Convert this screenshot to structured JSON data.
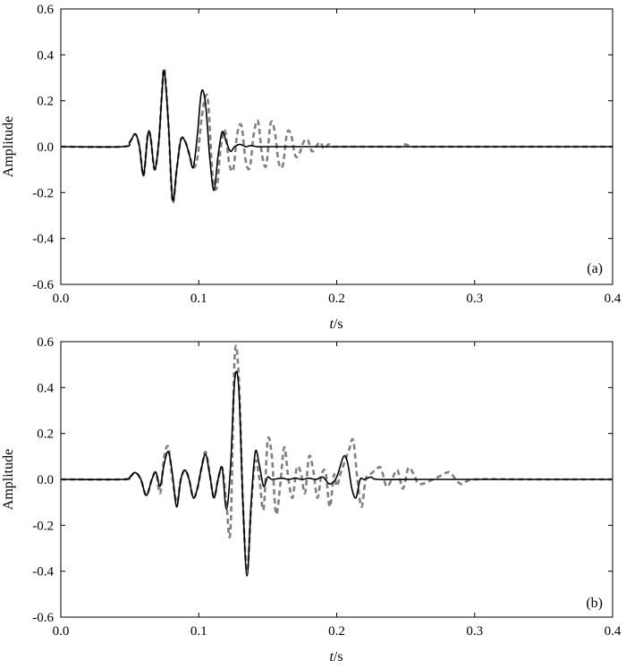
{
  "chart_data": [
    {
      "type": "line",
      "panel_label": "(a)",
      "xlabel_italic": "t",
      "xlabel_rest": "/s",
      "ylabel": "Amplitude",
      "xlim": [
        0.0,
        0.4
      ],
      "ylim": [
        -0.6,
        0.6
      ],
      "xticks": [
        "0.0",
        "0.1",
        "0.2",
        "0.3",
        "0.4"
      ],
      "yticks": [
        "0.6",
        "0.4",
        "0.2",
        "0.0",
        "-0.2",
        "-0.4",
        "-0.6"
      ],
      "grid": false,
      "series": [
        {
          "style": "solid",
          "color": "#000000",
          "x": [
            0.0,
            0.045,
            0.05,
            0.054,
            0.057,
            0.06,
            0.063,
            0.065,
            0.068,
            0.071,
            0.073,
            0.075,
            0.078,
            0.081,
            0.084,
            0.087,
            0.09,
            0.093,
            0.096,
            0.099,
            0.102,
            0.105,
            0.108,
            0.111,
            0.114,
            0.117,
            0.12,
            0.123,
            0.126,
            0.13,
            0.134,
            0.138,
            0.142,
            0.15,
            0.2,
            0.4
          ],
          "y": [
            0.0,
            0.0,
            0.02,
            0.055,
            0.0,
            -0.125,
            0.05,
            0.045,
            -0.1,
            0.02,
            0.2,
            0.33,
            0.1,
            -0.23,
            -0.1,
            0.03,
            0.025,
            -0.03,
            -0.09,
            0.05,
            0.24,
            0.18,
            -0.05,
            -0.19,
            -0.04,
            0.065,
            0.02,
            -0.02,
            0.0,
            0.01,
            0.0,
            0.005,
            0.0,
            0.0,
            0.0,
            0.0
          ]
        },
        {
          "style": "dashed",
          "color": "#808080",
          "x": [
            0.0,
            0.045,
            0.05,
            0.054,
            0.057,
            0.06,
            0.063,
            0.065,
            0.068,
            0.071,
            0.073,
            0.075,
            0.078,
            0.081,
            0.084,
            0.087,
            0.09,
            0.093,
            0.096,
            0.099,
            0.102,
            0.105,
            0.107,
            0.11,
            0.113,
            0.116,
            0.119,
            0.122,
            0.125,
            0.128,
            0.131,
            0.134,
            0.137,
            0.14,
            0.143,
            0.146,
            0.149,
            0.152,
            0.155,
            0.158,
            0.161,
            0.164,
            0.167,
            0.17,
            0.173,
            0.176,
            0.179,
            0.182,
            0.185,
            0.188,
            0.191,
            0.194,
            0.197,
            0.2,
            0.22,
            0.24,
            0.246,
            0.25,
            0.254,
            0.26,
            0.3,
            0.32,
            0.34,
            0.36,
            0.4
          ],
          "y": [
            0.0,
            0.0,
            0.02,
            0.055,
            0.0,
            -0.125,
            0.05,
            0.045,
            -0.1,
            0.02,
            0.21,
            0.34,
            0.1,
            -0.24,
            -0.1,
            0.03,
            0.025,
            -0.03,
            -0.09,
            -0.05,
            0.12,
            0.22,
            0.18,
            -0.12,
            -0.18,
            0.0,
            0.07,
            -0.07,
            -0.1,
            0.06,
            0.09,
            -0.06,
            -0.09,
            0.06,
            0.11,
            -0.04,
            -0.08,
            0.1,
            0.07,
            -0.07,
            -0.08,
            0.06,
            0.05,
            -0.04,
            -0.03,
            0.02,
            0.03,
            -0.02,
            0.0,
            0.02,
            -0.01,
            0.01,
            0.0,
            0.0,
            0.0,
            0.0,
            0.0,
            0.01,
            0.0,
            0.0,
            0.0,
            0.0,
            0.0,
            0.0,
            0.0
          ]
        }
      ]
    },
    {
      "type": "line",
      "panel_label": "(b)",
      "xlabel_italic": "t",
      "xlabel_rest": "/s",
      "ylabel": "Amplitude",
      "xlim": [
        0.0,
        0.4
      ],
      "ylim": [
        -0.6,
        0.6
      ],
      "xticks": [
        "0.0",
        "0.1",
        "0.2",
        "0.3",
        "0.4"
      ],
      "yticks": [
        "0.6",
        "0.4",
        "0.2",
        "0.0",
        "-0.2",
        "-0.4",
        "-0.6"
      ],
      "grid": false,
      "series": [
        {
          "style": "solid",
          "color": "#000000",
          "x": [
            0.0,
            0.045,
            0.05,
            0.054,
            0.058,
            0.062,
            0.066,
            0.069,
            0.072,
            0.075,
            0.078,
            0.081,
            0.084,
            0.087,
            0.09,
            0.093,
            0.096,
            0.099,
            0.102,
            0.105,
            0.108,
            0.111,
            0.114,
            0.117,
            0.12,
            0.123,
            0.126,
            0.129,
            0.132,
            0.135,
            0.138,
            0.141,
            0.144,
            0.147,
            0.15,
            0.153,
            0.16,
            0.165,
            0.17,
            0.175,
            0.18,
            0.185,
            0.19,
            0.195,
            0.2,
            0.205,
            0.208,
            0.211,
            0.214,
            0.217,
            0.22,
            0.225,
            0.23,
            0.26,
            0.3,
            0.33,
            0.4
          ],
          "y": [
            0.0,
            0.0,
            0.01,
            0.03,
            0.0,
            -0.07,
            0.0,
            0.03,
            -0.03,
            0.07,
            0.12,
            0.02,
            -0.12,
            0.0,
            0.04,
            0.0,
            -0.08,
            -0.04,
            0.05,
            0.11,
            0.02,
            -0.08,
            0.0,
            0.05,
            -0.13,
            0.05,
            0.43,
            0.4,
            -0.1,
            -0.42,
            -0.1,
            0.12,
            0.06,
            -0.03,
            0.01,
            0.0,
            0.005,
            0.0,
            0.005,
            0.0,
            0.005,
            0.0,
            0.01,
            -0.02,
            0.01,
            0.1,
            0.07,
            -0.04,
            -0.08,
            0.0,
            0.0,
            0.01,
            0.0,
            0.0,
            0.0,
            0.0,
            0.0
          ]
        },
        {
          "style": "dashed",
          "color": "#808080",
          "x": [
            0.0,
            0.045,
            0.05,
            0.054,
            0.058,
            0.062,
            0.066,
            0.069,
            0.072,
            0.075,
            0.078,
            0.081,
            0.084,
            0.087,
            0.09,
            0.093,
            0.096,
            0.099,
            0.102,
            0.105,
            0.108,
            0.111,
            0.114,
            0.117,
            0.12,
            0.123,
            0.126,
            0.129,
            0.132,
            0.135,
            0.138,
            0.141,
            0.144,
            0.147,
            0.15,
            0.153,
            0.156,
            0.159,
            0.162,
            0.165,
            0.168,
            0.171,
            0.174,
            0.177,
            0.18,
            0.183,
            0.186,
            0.189,
            0.192,
            0.195,
            0.198,
            0.2,
            0.203,
            0.206,
            0.209,
            0.212,
            0.215,
            0.218,
            0.221,
            0.224,
            0.228,
            0.232,
            0.236,
            0.24,
            0.244,
            0.248,
            0.252,
            0.256,
            0.26,
            0.27,
            0.28,
            0.283,
            0.29,
            0.3,
            0.34,
            0.38,
            0.4
          ],
          "y": [
            0.0,
            0.0,
            0.01,
            0.03,
            0.0,
            -0.07,
            0.0,
            0.03,
            -0.06,
            0.1,
            0.14,
            0.0,
            -0.1,
            0.0,
            0.04,
            0.0,
            -0.08,
            -0.04,
            0.05,
            0.12,
            0.02,
            -0.08,
            0.0,
            0.05,
            -0.1,
            -0.22,
            0.53,
            0.45,
            -0.1,
            -0.4,
            -0.12,
            0.08,
            0.0,
            -0.13,
            0.17,
            0.1,
            -0.15,
            -0.03,
            0.14,
            0.0,
            -0.08,
            0.05,
            0.03,
            -0.06,
            0.1,
            0.04,
            -0.08,
            0.02,
            0.03,
            -0.12,
            0.02,
            -0.03,
            0.03,
            0.08,
            0.13,
            0.17,
            0.0,
            -0.12,
            0.0,
            0.02,
            0.04,
            0.05,
            -0.03,
            0.0,
            0.04,
            -0.04,
            0.05,
            0.02,
            -0.02,
            0.0,
            0.03,
            0.025,
            -0.02,
            0.0,
            0.0,
            0.0,
            0.0
          ]
        }
      ]
    }
  ]
}
